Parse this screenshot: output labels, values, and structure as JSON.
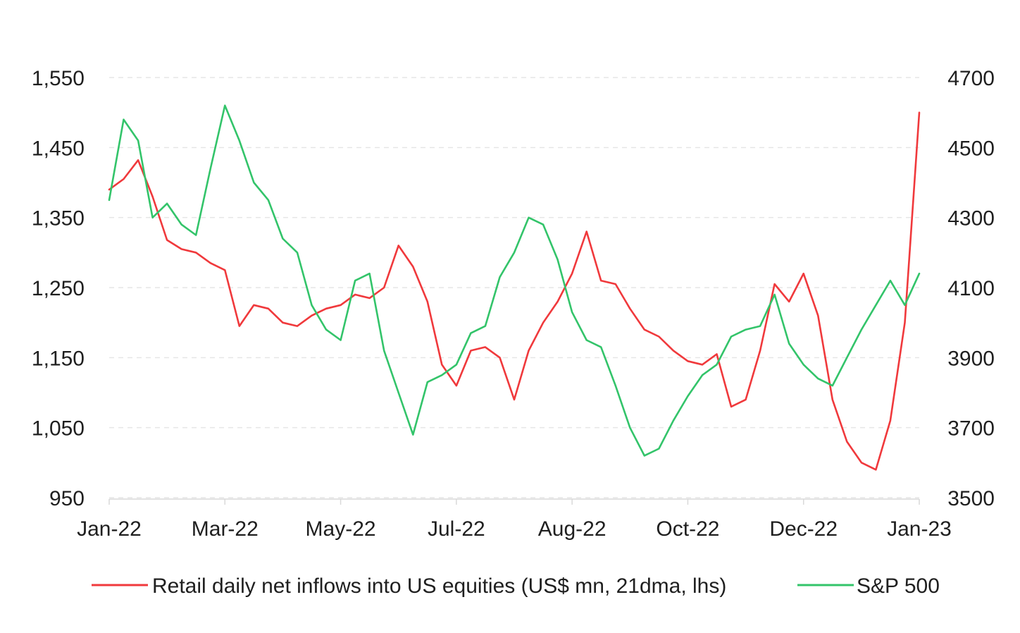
{
  "chart_data": {
    "type": "line",
    "title": "",
    "xlabel": "",
    "ylabel_left": "",
    "ylabel_right": "",
    "x_tick_labels": [
      "Jan-22",
      "Mar-22",
      "May-22",
      "Jul-22",
      "Aug-22",
      "Oct-22",
      "Dec-22",
      "Jan-23"
    ],
    "y_left": {
      "lim": [
        950,
        1550
      ],
      "ticks": [
        950,
        1050,
        1150,
        1250,
        1350,
        1450,
        1550
      ],
      "tick_labels": [
        "950",
        "1,050",
        "1,150",
        "1,250",
        "1,350",
        "1,450",
        "1,550"
      ]
    },
    "y_right": {
      "lim": [
        3500,
        4700
      ],
      "ticks": [
        3500,
        3700,
        3900,
        4100,
        4300,
        4500,
        4700
      ],
      "tick_labels": [
        "3500",
        "3700",
        "3900",
        "4100",
        "4300",
        "4500",
        "4700"
      ]
    },
    "x": [
      "2022-01-03",
      "2022-01-10",
      "2022-01-17",
      "2022-01-24",
      "2022-01-31",
      "2022-02-07",
      "2022-02-14",
      "2022-02-21",
      "2022-02-28",
      "2022-03-07",
      "2022-03-14",
      "2022-03-21",
      "2022-03-28",
      "2022-04-04",
      "2022-04-11",
      "2022-04-18",
      "2022-04-25",
      "2022-05-02",
      "2022-05-09",
      "2022-05-16",
      "2022-05-23",
      "2022-05-30",
      "2022-06-06",
      "2022-06-13",
      "2022-06-20",
      "2022-06-27",
      "2022-07-04",
      "2022-07-11",
      "2022-07-18",
      "2022-07-25",
      "2022-08-01",
      "2022-08-08",
      "2022-08-15",
      "2022-08-22",
      "2022-08-29",
      "2022-09-05",
      "2022-09-12",
      "2022-09-19",
      "2022-09-26",
      "2022-10-03",
      "2022-10-10",
      "2022-10-17",
      "2022-10-24",
      "2022-10-31",
      "2022-11-07",
      "2022-11-14",
      "2022-11-21",
      "2022-11-28",
      "2022-12-05",
      "2022-12-12",
      "2022-12-19",
      "2022-12-26",
      "2023-01-02",
      "2023-01-09",
      "2023-01-16",
      "2023-01-23",
      "2023-01-30"
    ],
    "series": [
      {
        "name": "Retail daily net inflows into US equities (US$ mn, 21dma, lhs)",
        "axis": "left",
        "color": "#f0393c",
        "values": [
          1390,
          1405,
          1432,
          1380,
          1318,
          1305,
          1300,
          1285,
          1275,
          1195,
          1225,
          1220,
          1200,
          1195,
          1210,
          1220,
          1225,
          1240,
          1235,
          1250,
          1310,
          1280,
          1230,
          1140,
          1110,
          1160,
          1165,
          1150,
          1090,
          1160,
          1200,
          1230,
          1270,
          1330,
          1260,
          1255,
          1220,
          1190,
          1180,
          1160,
          1145,
          1140,
          1155,
          1080,
          1090,
          1160,
          1255,
          1230,
          1270,
          1210,
          1090,
          1030,
          1000,
          990,
          1060,
          1200,
          1500
        ]
      },
      {
        "name": "S&P 500",
        "axis": "right",
        "color": "#33c46a",
        "values": [
          4350,
          4580,
          4520,
          4300,
          4340,
          4280,
          4250,
          4440,
          4620,
          4520,
          4400,
          4350,
          4240,
          4200,
          4050,
          3980,
          3950,
          4120,
          4140,
          3920,
          3800,
          3680,
          3830,
          3850,
          3880,
          3970,
          3990,
          4130,
          4200,
          4300,
          4280,
          4180,
          4030,
          3950,
          3930,
          3820,
          3700,
          3620,
          3640,
          3720,
          3790,
          3850,
          3880,
          3960,
          3980,
          3990,
          4080,
          3940,
          3880,
          3840,
          3820,
          3900,
          3980,
          4050,
          4120,
          4050,
          4140
        ]
      }
    ],
    "legend": {
      "placement": "bottom",
      "items": [
        "Retail daily net inflows into US equities (US$ mn, 21dma, lhs)",
        "S&P 500"
      ]
    },
    "grid": {
      "horizontal": true,
      "style": "dashed",
      "color": "#e6e6e6"
    }
  }
}
